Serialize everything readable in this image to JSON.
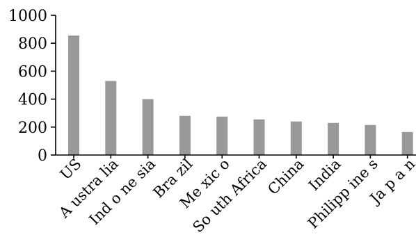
{
  "chart_data": {
    "type": "bar",
    "title": "",
    "xlabel": "",
    "ylabel": "",
    "categories": [
      "US",
      "Australia",
      "Indonesia",
      "Brazil",
      "Mexico",
      "South Africa",
      "China",
      "India",
      "Philippines",
      "Japan"
    ],
    "category_labels_as_printed": [
      "US",
      "A ustra lia",
      "Ind o ne sia",
      "Bra zil",
      "Me xic o",
      "So uth Africa",
      "China",
      "India",
      "Philipp ine s",
      "Ja p a n"
    ],
    "values": [
      855,
      530,
      400,
      280,
      275,
      255,
      240,
      230,
      215,
      165
    ],
    "ylim": [
      0,
      1000
    ],
    "yticks": [
      0,
      200,
      400,
      600,
      800,
      1000
    ],
    "grid": false,
    "legend": "none",
    "bar_color": "#999999"
  }
}
